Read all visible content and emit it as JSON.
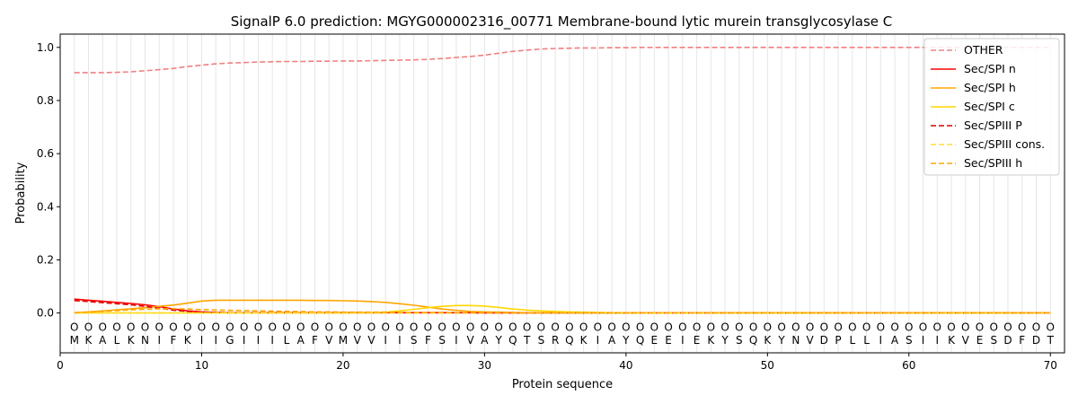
{
  "chart_data": {
    "type": "line",
    "title": "SignalP 6.0 prediction: MGYG000002316_00771 Membrane-bound lytic murein transglycosylase C",
    "xlabel": "Protein sequence",
    "ylabel": "Probability",
    "xlim": [
      0,
      71
    ],
    "ylim": [
      -0.15,
      1.05
    ],
    "xticks": [
      0,
      10,
      20,
      30,
      40,
      50,
      60,
      70
    ],
    "yticks": [
      0.0,
      0.2,
      0.4,
      0.6,
      0.8,
      1.0
    ],
    "grid": "vertical lines at each residue",
    "legend_position": "top-right",
    "sequence": [
      "M",
      "K",
      "A",
      "L",
      "K",
      "N",
      "I",
      "F",
      "K",
      "I",
      "I",
      "G",
      "I",
      "I",
      "I",
      "L",
      "A",
      "F",
      "V",
      "M",
      "V",
      "V",
      "I",
      "I",
      "S",
      "F",
      "S",
      "I",
      "V",
      "A",
      "Y",
      "Q",
      "T",
      "S",
      "R",
      "Q",
      "K",
      "I",
      "A",
      "Y",
      "Q",
      "E",
      "E",
      "I",
      "E",
      "K",
      "Y",
      "S",
      "Q",
      "K",
      "Y",
      "N",
      "V",
      "D",
      "P",
      "L",
      "L",
      "I",
      "A",
      "S",
      "I",
      "I",
      "K",
      "V",
      "E",
      "S",
      "D",
      "F",
      "D",
      "T"
    ],
    "position_marker": "O",
    "x": [
      1,
      2,
      3,
      4,
      5,
      6,
      7,
      8,
      9,
      10,
      11,
      12,
      13,
      14,
      15,
      16,
      17,
      18,
      19,
      20,
      21,
      22,
      23,
      24,
      25,
      26,
      27,
      28,
      29,
      30,
      31,
      32,
      33,
      34,
      35,
      36,
      37,
      38,
      39,
      40,
      41,
      42,
      43,
      44,
      45,
      46,
      47,
      48,
      49,
      50,
      51,
      52,
      53,
      54,
      55,
      56,
      57,
      58,
      59,
      60,
      61,
      62,
      63,
      64,
      65,
      66,
      67,
      68,
      69,
      70
    ],
    "series": [
      {
        "name": "OTHER",
        "color": "#f08080",
        "dash": "dashed",
        "values": [
          0.905,
          0.905,
          0.905,
          0.906,
          0.908,
          0.912,
          0.916,
          0.921,
          0.928,
          0.933,
          0.938,
          0.941,
          0.943,
          0.945,
          0.946,
          0.947,
          0.947,
          0.948,
          0.948,
          0.949,
          0.949,
          0.95,
          0.951,
          0.952,
          0.953,
          0.955,
          0.958,
          0.962,
          0.966,
          0.971,
          0.978,
          0.985,
          0.99,
          0.994,
          0.996,
          0.997,
          0.998,
          0.998,
          0.999,
          0.999,
          1.0,
          1.0,
          1.0,
          1.0,
          1.0,
          1.0,
          1.0,
          1.0,
          1.0,
          1.0,
          1.0,
          1.0,
          1.0,
          1.0,
          1.0,
          1.0,
          1.0,
          1.0,
          1.0,
          1.0,
          1.0,
          1.0,
          1.0,
          1.0,
          1.0,
          1.0,
          1.0,
          1.0,
          1.0,
          1.0
        ]
      },
      {
        "name": "Sec/SPI n",
        "color": "#ff0000",
        "dash": "solid",
        "values": [
          0.052,
          0.048,
          0.044,
          0.04,
          0.036,
          0.031,
          0.024,
          0.015,
          0.008,
          0.004,
          0.002,
          0.001,
          0.001,
          0.001,
          0.001,
          0.001,
          0.001,
          0.001,
          0.001,
          0.001,
          0.001,
          0.001,
          0.001,
          0.001,
          0.001,
          0.001,
          0.001,
          0.001,
          0.001,
          0.0,
          0.0,
          0.0,
          0.0,
          0.0,
          0.0,
          0.0,
          0.0,
          0.0,
          0.0,
          0.0,
          0.0,
          0.0,
          0.0,
          0.0,
          0.0,
          0.0,
          0.0,
          0.0,
          0.0,
          0.0,
          0.0,
          0.0,
          0.0,
          0.0,
          0.0,
          0.0,
          0.0,
          0.0,
          0.0,
          0.0,
          0.0,
          0.0,
          0.0,
          0.0,
          0.0,
          0.0,
          0.0,
          0.0,
          0.0,
          0.0
        ]
      },
      {
        "name": "Sec/SPI h",
        "color": "#ffa500",
        "dash": "solid",
        "values": [
          0.001,
          0.004,
          0.008,
          0.012,
          0.016,
          0.02,
          0.025,
          0.03,
          0.037,
          0.045,
          0.048,
          0.048,
          0.048,
          0.048,
          0.048,
          0.048,
          0.048,
          0.047,
          0.047,
          0.046,
          0.045,
          0.043,
          0.04,
          0.035,
          0.029,
          0.022,
          0.015,
          0.01,
          0.006,
          0.004,
          0.003,
          0.002,
          0.001,
          0.001,
          0.001,
          0.0,
          0.0,
          0.0,
          0.0,
          0.0,
          0.0,
          0.0,
          0.0,
          0.0,
          0.0,
          0.0,
          0.0,
          0.0,
          0.0,
          0.0,
          0.0,
          0.0,
          0.0,
          0.0,
          0.0,
          0.0,
          0.0,
          0.0,
          0.0,
          0.0,
          0.0,
          0.0,
          0.0,
          0.0,
          0.0,
          0.0,
          0.0,
          0.0,
          0.0,
          0.0
        ]
      },
      {
        "name": "Sec/SPI c",
        "color": "#ffd700",
        "dash": "solid",
        "values": [
          0.0,
          0.0,
          0.0,
          0.0,
          0.0,
          0.0,
          0.0,
          0.0,
          0.0,
          0.0,
          0.0,
          0.0,
          0.0,
          0.0,
          0.0,
          0.0,
          0.0,
          0.0,
          0.0,
          0.0,
          0.0,
          0.001,
          0.003,
          0.008,
          0.014,
          0.02,
          0.025,
          0.028,
          0.028,
          0.026,
          0.021,
          0.015,
          0.011,
          0.008,
          0.006,
          0.004,
          0.003,
          0.002,
          0.001,
          0.001,
          0.0,
          0.0,
          0.0,
          0.0,
          0.0,
          0.0,
          0.0,
          0.0,
          0.0,
          0.0,
          0.0,
          0.0,
          0.0,
          0.0,
          0.0,
          0.0,
          0.0,
          0.0,
          0.0,
          0.0,
          0.0,
          0.0,
          0.0,
          0.0,
          0.0,
          0.0,
          0.0,
          0.0,
          0.0,
          0.0
        ]
      },
      {
        "name": "Sec/SPIII P",
        "color": "#dd0000",
        "dash": "dashed",
        "values": [
          0.047,
          0.043,
          0.039,
          0.035,
          0.031,
          0.025,
          0.018,
          0.011,
          0.006,
          0.003,
          0.002,
          0.001,
          0.001,
          0.001,
          0.001,
          0.001,
          0.001,
          0.001,
          0.001,
          0.001,
          0.001,
          0.001,
          0.001,
          0.001,
          0.001,
          0.001,
          0.001,
          0.001,
          0.001,
          0.0,
          0.0,
          0.0,
          0.0,
          0.0,
          0.0,
          0.0,
          0.0,
          0.0,
          0.0,
          0.0,
          0.0,
          0.0,
          0.0,
          0.0,
          0.0,
          0.0,
          0.0,
          0.0,
          0.0,
          0.0,
          0.0,
          0.0,
          0.0,
          0.0,
          0.0,
          0.0,
          0.0,
          0.0,
          0.0,
          0.0,
          0.0,
          0.0,
          0.0,
          0.0,
          0.0,
          0.0,
          0.0,
          0.0,
          0.0,
          0.0
        ]
      },
      {
        "name": "Sec/SPIII cons.",
        "color": "#ffe033",
        "dash": "dashed",
        "values": [
          0.0,
          0.0,
          0.0,
          0.0,
          0.0,
          0.0,
          0.0,
          0.0,
          0.0,
          0.0,
          0.0,
          0.0,
          0.0,
          0.0,
          0.0,
          0.0,
          0.0,
          0.0,
          0.0,
          0.0,
          0.0,
          0.0,
          0.0,
          0.0,
          0.0,
          0.0,
          0.0,
          0.0,
          0.0,
          0.0,
          0.0,
          0.0,
          0.0,
          0.0,
          0.0,
          0.0,
          0.0,
          0.0,
          0.0,
          0.0,
          0.0,
          0.0,
          0.0,
          0.0,
          0.0,
          0.0,
          0.0,
          0.0,
          0.0,
          0.0,
          0.0,
          0.0,
          0.0,
          0.0,
          0.0,
          0.0,
          0.0,
          0.0,
          0.0,
          0.0,
          0.0,
          0.0,
          0.0,
          0.0,
          0.0,
          0.0,
          0.0,
          0.0,
          0.0,
          0.0
        ]
      },
      {
        "name": "Sec/SPIII h",
        "color": "#ffa500",
        "dash": "dashed",
        "values": [
          0.001,
          0.003,
          0.006,
          0.009,
          0.012,
          0.014,
          0.016,
          0.016,
          0.015,
          0.013,
          0.011,
          0.01,
          0.009,
          0.008,
          0.007,
          0.006,
          0.005,
          0.004,
          0.004,
          0.003,
          0.003,
          0.003,
          0.003,
          0.002,
          0.002,
          0.002,
          0.002,
          0.001,
          0.001,
          0.001,
          0.001,
          0.0,
          0.0,
          0.0,
          0.0,
          0.0,
          0.0,
          0.0,
          0.0,
          0.0,
          0.0,
          0.0,
          0.0,
          0.0,
          0.0,
          0.0,
          0.0,
          0.0,
          0.0,
          0.0,
          0.0,
          0.0,
          0.0,
          0.0,
          0.0,
          0.0,
          0.0,
          0.0,
          0.0,
          0.0,
          0.0,
          0.0,
          0.0,
          0.0,
          0.0,
          0.0,
          0.0,
          0.0,
          0.0,
          0.0
        ]
      }
    ]
  }
}
